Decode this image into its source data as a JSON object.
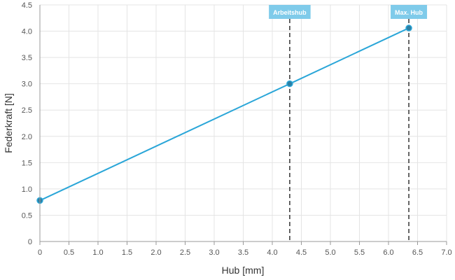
{
  "chart_data": {
    "type": "line",
    "xlabel": "Hub [mm]",
    "ylabel": "Federkraft [N]",
    "xlim": [
      0,
      7.0
    ],
    "ylim": [
      0,
      4.5
    ],
    "grid": true,
    "x_ticks": [
      "0",
      "0.5",
      "1.0",
      "1.5",
      "2.0",
      "2.5",
      "3.0",
      "3.5",
      "4.0",
      "4.5",
      "5.0",
      "5.5",
      "6.0",
      "6.5",
      "7.0"
    ],
    "y_ticks": [
      "0",
      "0.5",
      "1.0",
      "1.5",
      "2.0",
      "2.5",
      "3.0",
      "3.5",
      "4.0",
      "4.5"
    ],
    "series": [
      {
        "points": [
          {
            "x": 0,
            "y": 0.78
          },
          {
            "x": 4.3,
            "y": 3.0
          },
          {
            "x": 6.35,
            "y": 4.06
          }
        ]
      }
    ],
    "markers": [
      {
        "label": "Arbeitshub",
        "x": 4.3
      },
      {
        "label": "Max. Hub",
        "x": 6.35
      }
    ],
    "colors": {
      "line": "#2aa6d8",
      "point_fill": "#2d7fa3",
      "marker_box": "#7fcbea",
      "grid": "#e4e4e4",
      "axis": "#999999"
    }
  }
}
